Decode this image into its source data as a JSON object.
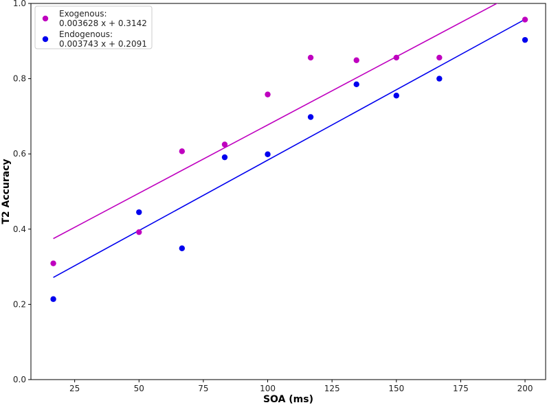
{
  "chart_data": {
    "type": "scatter",
    "title": "",
    "xlabel": "SOA (ms)",
    "ylabel": "T2 Accuracy",
    "xlim": [
      8,
      208
    ],
    "ylim": [
      0.0,
      1.0
    ],
    "xticks": [
      25,
      50,
      75,
      100,
      125,
      150,
      175,
      200
    ],
    "yticks": [
      0.0,
      0.2,
      0.4,
      0.6,
      0.8,
      1.0
    ],
    "grid": false,
    "legend_position": "top-left",
    "series": [
      {
        "name": "Exogenous:",
        "legend_formula": "0.003628 x + 0.3142",
        "color": "#bf00bf",
        "x": [
          16.7,
          50,
          66.7,
          83.3,
          100,
          116.7,
          134.5,
          150,
          166.7,
          200
        ],
        "y": [
          0.309,
          0.392,
          0.607,
          0.625,
          0.758,
          0.856,
          0.849,
          0.856,
          0.856,
          0.957
        ],
        "fit": {
          "slope": 0.003628,
          "intercept": 0.3142
        }
      },
      {
        "name": "Endogenous:",
        "legend_formula": "0.003743 x + 0.2091",
        "color": "#0000ee",
        "x": [
          16.7,
          50,
          66.7,
          83.3,
          100,
          116.7,
          134.5,
          150,
          166.7,
          200
        ],
        "y": [
          0.214,
          0.445,
          0.349,
          0.591,
          0.599,
          0.698,
          0.785,
          0.755,
          0.8,
          0.903
        ],
        "fit": {
          "slope": 0.003743,
          "intercept": 0.2091
        }
      }
    ]
  }
}
